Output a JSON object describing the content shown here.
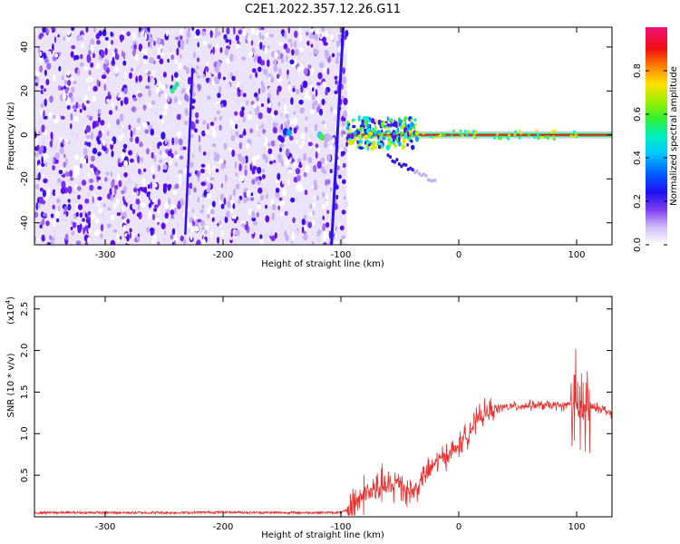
{
  "figure_title": "C2E1.2022.357.12.26.G11",
  "colors": {
    "snr_line": "#e8302e",
    "axis": "#000000",
    "spectral_palette": [
      "#ffffff",
      "#d8c8f8",
      "#9a60f0",
      "#6010f0",
      "#1a20f0",
      "#00a8ff",
      "#00f0e0",
      "#40f040",
      "#b8f000",
      "#ffe000",
      "#ff8000",
      "#f01010",
      "#f01070"
    ]
  },
  "chart_data": [
    {
      "type": "heatmap",
      "xlabel": "Height of straight line (km)",
      "ylabel": "Frequency (Hz)",
      "xlim": [
        -360,
        130
      ],
      "ylim": [
        -50,
        49
      ],
      "x_ticks": [
        -300,
        -200,
        -100,
        0,
        100
      ],
      "y_ticks": [
        -40,
        -20,
        0,
        20,
        40
      ],
      "colorbar": {
        "label": "Normalized spectral amplitude",
        "range": [
          0,
          1
        ],
        "ticks": [
          "0.0",
          "0.2",
          "0.4",
          "0.6",
          "0.8"
        ]
      },
      "features": {
        "noise_region_x": [
          -360,
          -95
        ],
        "carrier_line_frequency": 0,
        "carrier_start_x": -95
      }
    },
    {
      "type": "line",
      "xlabel": "Height of straight line (km)",
      "ylabel": "SNR (10 * v/v)",
      "y_exponent_label": "(x10",
      "y_exponent_value": "4",
      "y_exponent_close": ")",
      "xlim": [
        -360,
        130
      ],
      "ylim": [
        0,
        26500
      ],
      "x_ticks": [
        -300,
        -200,
        -100,
        0,
        100
      ],
      "y_tick_values": [
        5000,
        10000,
        15000,
        20000,
        25000
      ],
      "y_tick_labels": [
        "0.5",
        "1.0",
        "1.5",
        "2.0",
        "2.5"
      ],
      "series": [
        {
          "x": [
            -360,
            -320,
            -280,
            -240,
            -200,
            -160,
            -120,
            -100,
            -95,
            -90,
            -85,
            -80,
            -75,
            -70,
            -65,
            -60,
            -55,
            -50,
            -45,
            -40,
            -35,
            -30,
            -25,
            -20,
            -15,
            -10,
            -5,
            0,
            5,
            10,
            15,
            20,
            25,
            30,
            40,
            50,
            60,
            70,
            80,
            90,
            95,
            100,
            103,
            105,
            108,
            112,
            115,
            120,
            130
          ],
          "y": [
            500,
            500,
            500,
            500,
            550,
            500,
            500,
            500,
            800,
            1500,
            2200,
            2800,
            3000,
            3200,
            3800,
            3300,
            3800,
            4500,
            3200,
            3000,
            3500,
            5000,
            5500,
            6500,
            7000,
            7500,
            7800,
            8500,
            9500,
            10500,
            11500,
            12200,
            12600,
            13000,
            13200,
            13300,
            13400,
            13400,
            13400,
            13300,
            13800,
            12500,
            13500,
            12800,
            12600,
            13000,
            13100,
            13100,
            12400
          ]
        }
      ]
    }
  ]
}
